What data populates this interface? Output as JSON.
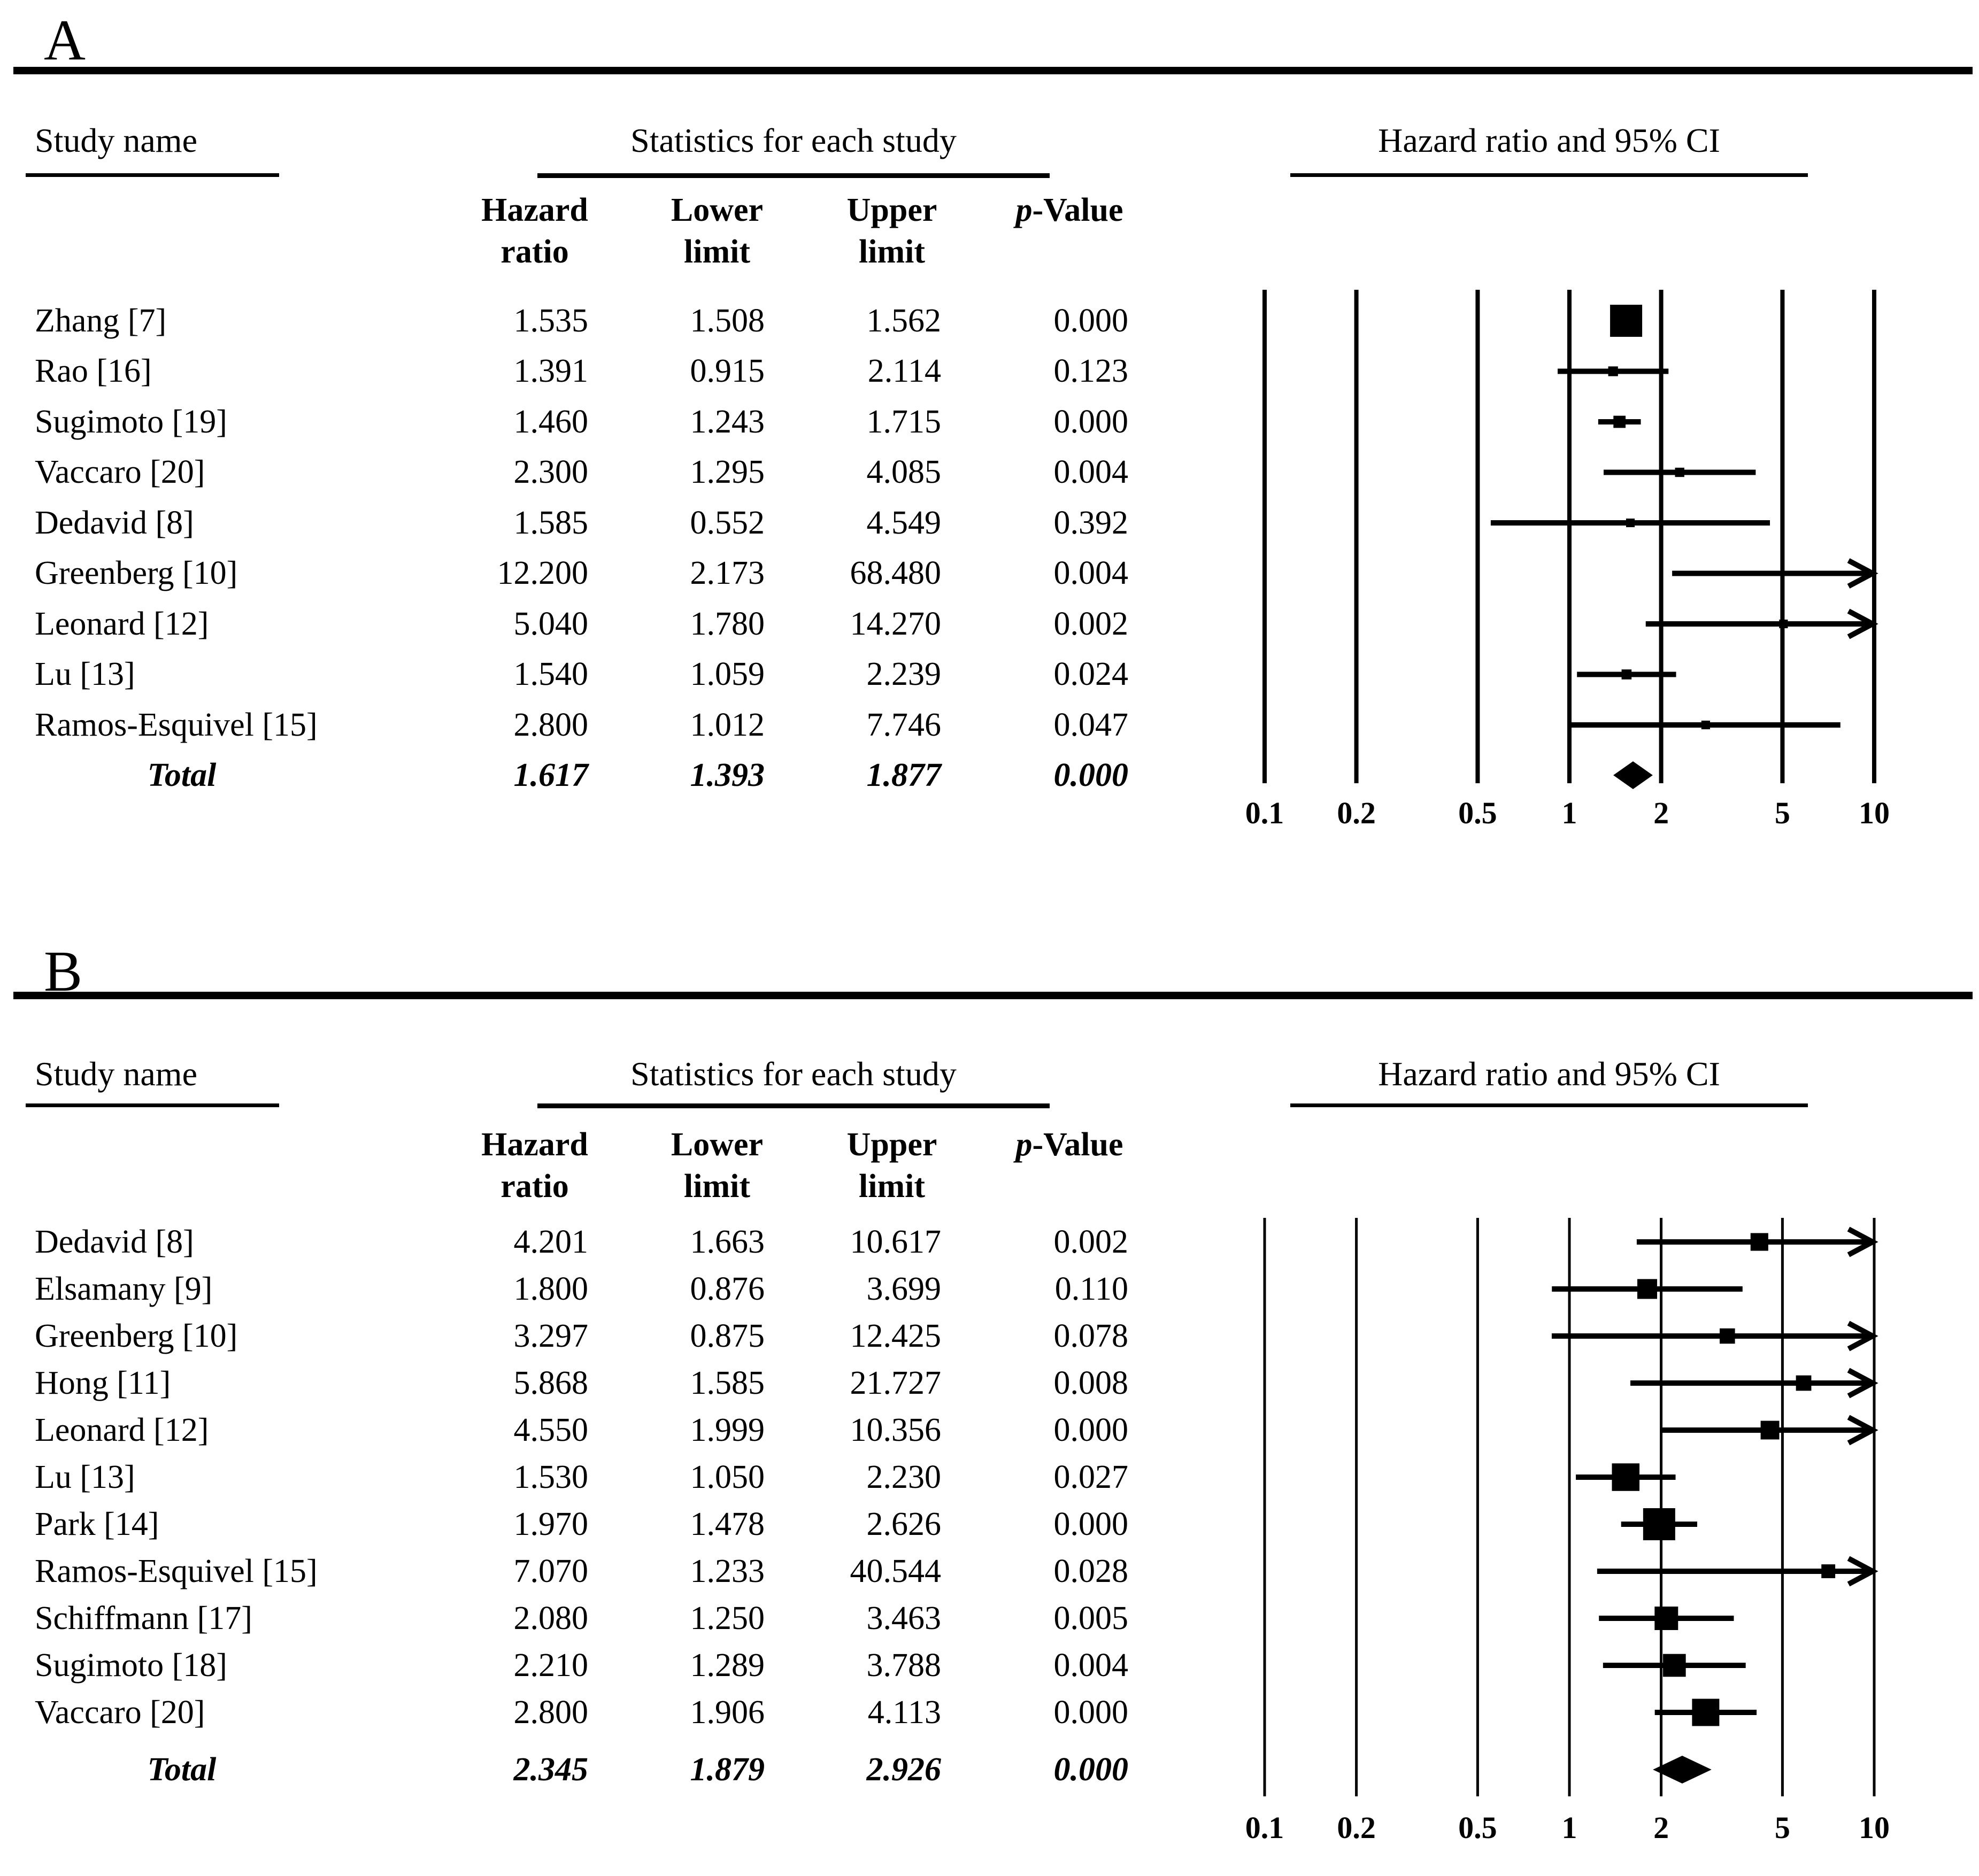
{
  "figure": {
    "background": "#ffffff",
    "ink_color": "#000000"
  },
  "headers": {
    "study_col": "Study name",
    "stats_group": "Statistics for each study",
    "plot_group": "Hazard ratio and 95% CI",
    "hazard_line1": "Hazard",
    "hazard_line2": "ratio",
    "lower_line1": "Lower",
    "lower_line2": "limit",
    "upper_line1": "Upper",
    "upper_line2": "limit",
    "p_value_italic": "p",
    "p_value_rest": "-Value"
  },
  "axis": {
    "scale": "log10",
    "ticks": [
      0.1,
      0.2,
      0.5,
      1,
      2,
      5,
      10
    ],
    "tick_labels": [
      "0.1",
      "0.2",
      "0.5",
      "1",
      "2",
      "5",
      "10"
    ]
  },
  "chart_data": [
    {
      "type": "forest",
      "panel_label": "A",
      "study_col": "Study name",
      "stats_title": "Statistics for each study",
      "plot_title": "Hazard ratio and 95% CI",
      "total_label": "Total",
      "xlim": [
        0.1,
        10
      ],
      "studies": [
        {
          "name": "Zhang [7]",
          "hr": "1.535",
          "lower": "1.508",
          "upper": "1.562",
          "p": "0.000"
        },
        {
          "name": "Rao [16]",
          "hr": "1.391",
          "lower": "0.915",
          "upper": "2.114",
          "p": "0.123"
        },
        {
          "name": "Sugimoto [19]",
          "hr": "1.460",
          "lower": "1.243",
          "upper": "1.715",
          "p": "0.000"
        },
        {
          "name": "Vaccaro [20]",
          "hr": "2.300",
          "lower": "1.295",
          "upper": "4.085",
          "p": "0.004"
        },
        {
          "name": "Dedavid [8]",
          "hr": "1.585",
          "lower": "0.552",
          "upper": "4.549",
          "p": "0.392"
        },
        {
          "name": "Greenberg [10]",
          "hr": "12.200",
          "lower": "2.173",
          "upper": "68.480",
          "p": "0.004"
        },
        {
          "name": "Leonard [12]",
          "hr": "5.040",
          "lower": "1.780",
          "upper": "14.270",
          "p": "0.002"
        },
        {
          "name": "Lu [13]",
          "hr": "1.540",
          "lower": "1.059",
          "upper": "2.239",
          "p": "0.024"
        },
        {
          "name": "Ramos-Esquivel [15]",
          "hr": "2.800",
          "lower": "1.012",
          "upper": "7.746",
          "p": "0.047"
        }
      ],
      "total": {
        "name": "Total",
        "hr": "1.617",
        "lower": "1.393",
        "upper": "1.877",
        "p": "0.000"
      }
    },
    {
      "type": "forest",
      "panel_label": "B",
      "study_col": "Study name",
      "stats_title": "Statistics for each study",
      "plot_title": "Hazard ratio and 95% CI",
      "total_label": "Total",
      "xlim": [
        0.1,
        10
      ],
      "studies": [
        {
          "name": "Dedavid [8]",
          "hr": "4.201",
          "lower": "1.663",
          "upper": "10.617",
          "p": "0.002"
        },
        {
          "name": "Elsamany [9]",
          "hr": "1.800",
          "lower": "0.876",
          "upper": "3.699",
          "p": "0.110"
        },
        {
          "name": "Greenberg [10]",
          "hr": "3.297",
          "lower": "0.875",
          "upper": "12.425",
          "p": "0.078"
        },
        {
          "name": "Hong [11]",
          "hr": "5.868",
          "lower": "1.585",
          "upper": "21.727",
          "p": "0.008"
        },
        {
          "name": "Leonard [12]",
          "hr": "4.550",
          "lower": "1.999",
          "upper": "10.356",
          "p": "0.000"
        },
        {
          "name": "Lu [13]",
          "hr": "1.530",
          "lower": "1.050",
          "upper": "2.230",
          "p": "0.027"
        },
        {
          "name": "Park [14]",
          "hr": "1.970",
          "lower": "1.478",
          "upper": "2.626",
          "p": "0.000"
        },
        {
          "name": "Ramos-Esquivel [15]",
          "hr": "7.070",
          "lower": "1.233",
          "upper": "40.544",
          "p": "0.028"
        },
        {
          "name": "Schiffmann [17]",
          "hr": "2.080",
          "lower": "1.250",
          "upper": "3.463",
          "p": "0.005"
        },
        {
          "name": "Sugimoto [18]",
          "hr": "2.210",
          "lower": "1.289",
          "upper": "3.788",
          "p": "0.004"
        },
        {
          "name": "Vaccaro [20]",
          "hr": "2.800",
          "lower": "1.906",
          "upper": "4.113",
          "p": "0.000"
        }
      ],
      "total": {
        "name": "Total",
        "hr": "2.345",
        "lower": "1.879",
        "upper": "2.926",
        "p": "0.000"
      }
    }
  ]
}
